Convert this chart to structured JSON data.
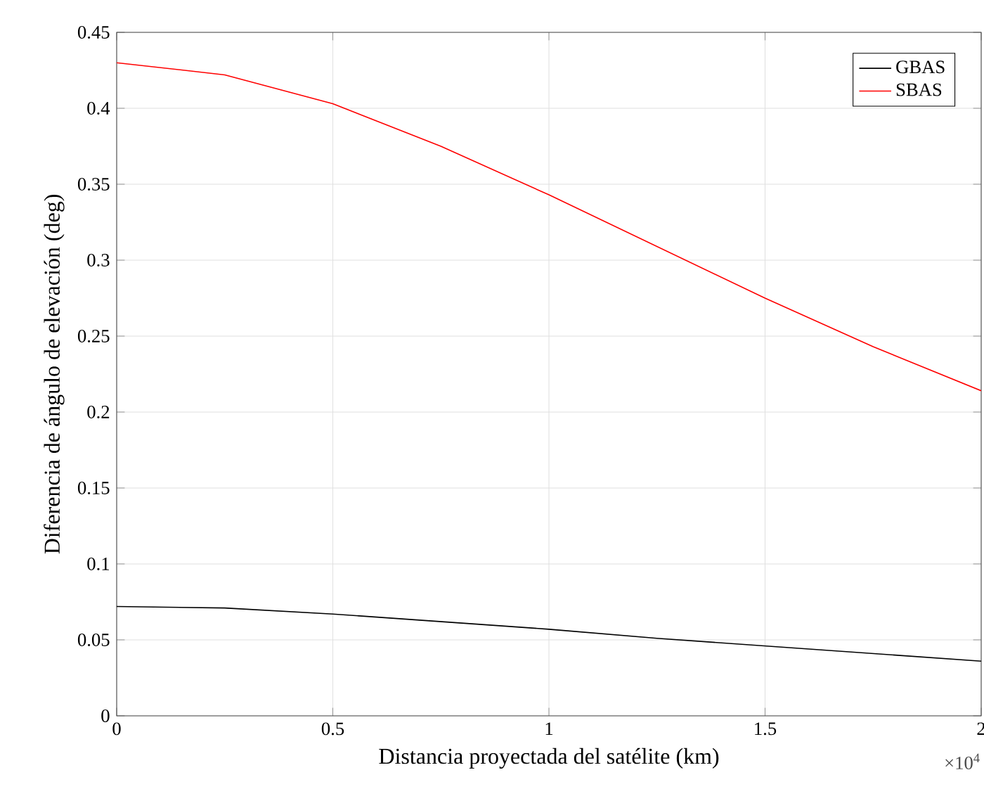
{
  "chart_data": {
    "type": "line",
    "xlabel": "Distancia proyectada del satélite (km)",
    "ylabel": "Diferencia de ángulo de elevación (deg)",
    "annotations": [
      "×10$^{4}$"
    ],
    "x": [
      0,
      0.25,
      0.5,
      0.75,
      1,
      1.25,
      1.5,
      1.75,
      2
    ],
    "series": [
      {
        "name": "GBAS",
        "color": "#000000",
        "values": [
          0.072,
          0.071,
          0.067,
          0.062,
          0.057,
          0.051,
          0.046,
          0.041,
          0.036
        ]
      },
      {
        "name": "SBAS",
        "color": "#ff0000",
        "values": [
          0.43,
          0.422,
          0.403,
          0.375,
          0.343,
          0.309,
          0.275,
          0.243,
          0.214
        ]
      }
    ],
    "xlim": [
      0,
      2
    ],
    "xticks": [
      0,
      0.5,
      1,
      1.5,
      2
    ],
    "ylim": [
      0,
      0.45
    ],
    "yticks": [
      0,
      0.05,
      0.1,
      0.15,
      0.2,
      0.25,
      0.3,
      0.35,
      0.4,
      0.45
    ],
    "grid": true,
    "legend": "top right"
  }
}
